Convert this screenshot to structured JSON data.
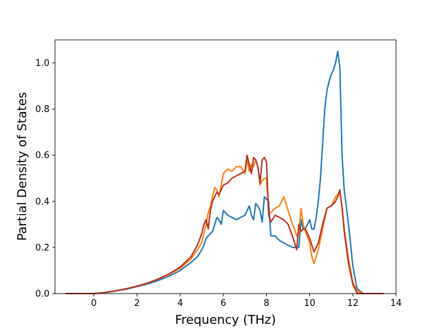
{
  "chart_data": {
    "type": "line",
    "title": "",
    "xlabel": "Frequency (THz)",
    "ylabel": "Partial Density of States",
    "xlim": [
      -1.8,
      14.0
    ],
    "ylim": [
      0.0,
      1.1
    ],
    "xticks": [
      0,
      2,
      4,
      6,
      8,
      10,
      12,
      14
    ],
    "xtick_labels": [
      "0",
      "2",
      "4",
      "6",
      "8",
      "10",
      "12",
      "14"
    ],
    "yticks": [
      0.0,
      0.2,
      0.4,
      0.6,
      0.8,
      1.0
    ],
    "ytick_labels": [
      "0.0",
      "0.2",
      "0.4",
      "0.6",
      "0.8",
      "1.0"
    ],
    "grid": false,
    "legend": "none",
    "series": [
      {
        "color": "#1f77b4",
        "x": [
          -1.3,
          0.0,
          0.5,
          1.0,
          1.5,
          2.0,
          2.5,
          3.0,
          3.5,
          4.0,
          4.5,
          4.8,
          5.0,
          5.1,
          5.2,
          5.3,
          5.5,
          5.7,
          5.8,
          5.9,
          6.0,
          6.2,
          6.4,
          6.6,
          6.8,
          7.0,
          7.1,
          7.2,
          7.3,
          7.4,
          7.5,
          7.6,
          7.7,
          7.8,
          7.9,
          8.0,
          8.1,
          8.2,
          8.4,
          8.6,
          8.8,
          9.0,
          9.2,
          9.4,
          9.5,
          9.6,
          9.7,
          9.8,
          9.9,
          10.0,
          10.1,
          10.2,
          10.3,
          10.4,
          10.5,
          10.6,
          10.7,
          10.8,
          10.9,
          11.0,
          11.1,
          11.2,
          11.3,
          11.4,
          11.5,
          11.6,
          11.8,
          12.0,
          12.2,
          12.5,
          13.4
        ],
        "y": [
          0.0,
          0.0,
          0.004,
          0.011,
          0.019,
          0.03,
          0.042,
          0.057,
          0.076,
          0.1,
          0.135,
          0.16,
          0.19,
          0.21,
          0.24,
          0.25,
          0.27,
          0.33,
          0.32,
          0.3,
          0.36,
          0.34,
          0.33,
          0.32,
          0.33,
          0.34,
          0.36,
          0.38,
          0.34,
          0.32,
          0.39,
          0.38,
          0.36,
          0.31,
          0.42,
          0.41,
          0.4,
          0.25,
          0.25,
          0.23,
          0.22,
          0.21,
          0.2,
          0.2,
          0.2,
          0.32,
          0.28,
          0.28,
          0.3,
          0.32,
          0.28,
          0.28,
          0.33,
          0.4,
          0.5,
          0.65,
          0.8,
          0.88,
          0.92,
          0.95,
          0.97,
          1.0,
          1.05,
          0.98,
          0.6,
          0.45,
          0.3,
          0.12,
          0.02,
          0.0,
          0.0
        ]
      },
      {
        "color": "#ff7f0e",
        "x": [
          -1.3,
          0.0,
          0.5,
          1.0,
          1.5,
          2.0,
          2.5,
          3.0,
          3.5,
          4.0,
          4.5,
          4.8,
          5.0,
          5.1,
          5.2,
          5.3,
          5.4,
          5.5,
          5.6,
          5.7,
          5.8,
          6.0,
          6.2,
          6.4,
          6.6,
          6.8,
          7.0,
          7.1,
          7.2,
          7.3,
          7.4,
          7.5,
          7.6,
          7.7,
          7.8,
          7.9,
          8.0,
          8.1,
          8.2,
          8.4,
          8.6,
          8.8,
          9.0,
          9.2,
          9.3,
          9.4,
          9.5,
          9.6,
          9.7,
          9.8,
          10.0,
          10.1,
          10.2,
          10.4,
          10.6,
          10.8,
          11.0,
          11.2,
          11.3,
          11.4,
          11.5,
          11.6,
          11.8,
          12.0,
          12.2,
          12.5,
          13.4
        ],
        "y": [
          0.0,
          0.0,
          0.005,
          0.012,
          0.021,
          0.032,
          0.046,
          0.063,
          0.084,
          0.11,
          0.15,
          0.19,
          0.22,
          0.26,
          0.3,
          0.35,
          0.38,
          0.42,
          0.46,
          0.45,
          0.42,
          0.52,
          0.54,
          0.53,
          0.55,
          0.55,
          0.52,
          0.58,
          0.53,
          0.56,
          0.55,
          0.58,
          0.55,
          0.47,
          0.49,
          0.5,
          0.5,
          0.35,
          0.35,
          0.37,
          0.38,
          0.42,
          0.36,
          0.3,
          0.28,
          0.25,
          0.26,
          0.37,
          0.3,
          0.27,
          0.22,
          0.16,
          0.13,
          0.19,
          0.28,
          0.37,
          0.38,
          0.42,
          0.43,
          0.44,
          0.38,
          0.28,
          0.15,
          0.05,
          0.01,
          0.0,
          0.0
        ]
      },
      {
        "color": "#b5321f",
        "x": [
          -1.3,
          0.0,
          0.5,
          1.0,
          1.5,
          2.0,
          2.5,
          3.0,
          3.5,
          4.0,
          4.5,
          4.8,
          5.0,
          5.1,
          5.2,
          5.3,
          5.4,
          5.5,
          5.6,
          5.7,
          5.8,
          6.0,
          6.2,
          6.4,
          6.6,
          6.8,
          7.0,
          7.1,
          7.2,
          7.3,
          7.4,
          7.5,
          7.6,
          7.7,
          7.8,
          7.9,
          8.0,
          8.1,
          8.2,
          8.4,
          8.6,
          8.8,
          9.0,
          9.2,
          9.3,
          9.4,
          9.5,
          9.6,
          9.7,
          9.8,
          10.0,
          10.2,
          10.4,
          10.6,
          10.8,
          11.0,
          11.2,
          11.3,
          11.4,
          11.5,
          11.6,
          11.8,
          12.0,
          12.2,
          12.5,
          13.4
        ],
        "y": [
          0.0,
          0.0,
          0.004,
          0.012,
          0.021,
          0.032,
          0.046,
          0.064,
          0.086,
          0.115,
          0.16,
          0.21,
          0.26,
          0.3,
          0.32,
          0.28,
          0.36,
          0.4,
          0.42,
          0.44,
          0.43,
          0.47,
          0.48,
          0.5,
          0.51,
          0.52,
          0.53,
          0.6,
          0.56,
          0.52,
          0.59,
          0.58,
          0.55,
          0.48,
          0.58,
          0.59,
          0.57,
          0.34,
          0.31,
          0.34,
          0.33,
          0.32,
          0.3,
          0.25,
          0.22,
          0.19,
          0.3,
          0.27,
          0.28,
          0.28,
          0.24,
          0.18,
          0.22,
          0.3,
          0.37,
          0.38,
          0.4,
          0.42,
          0.45,
          0.37,
          0.27,
          0.13,
          0.04,
          0.0,
          0.0,
          0.0
        ]
      }
    ]
  }
}
